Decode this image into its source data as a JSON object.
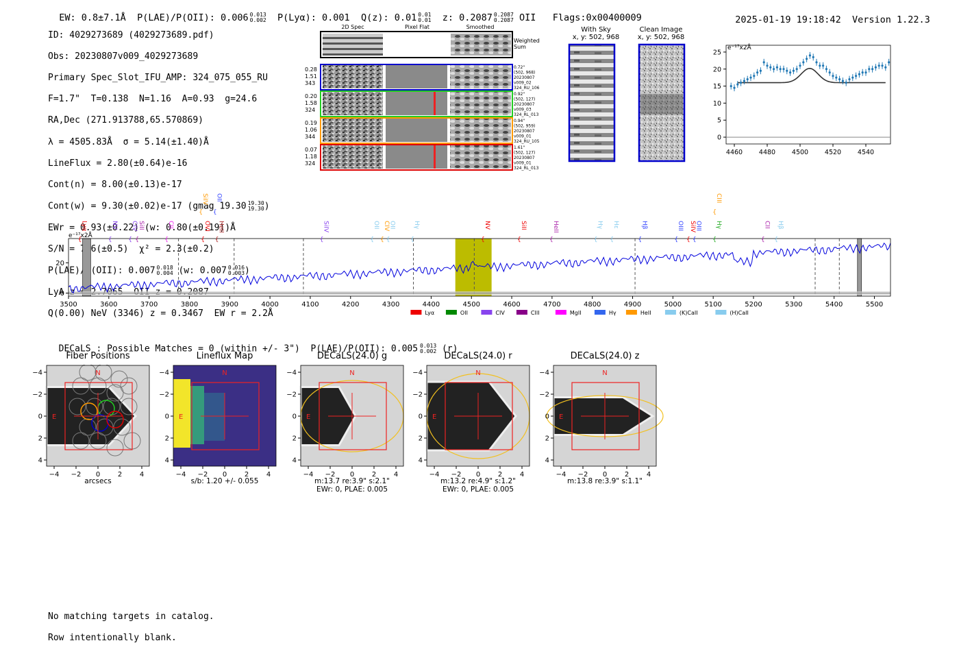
{
  "header": {
    "ew": "EW: 0.8±7.1Å",
    "plae": "P(LAE)/P(OII): 0.006",
    "plae_hi": "0.013",
    "plae_lo": "0.002",
    "plya": "P(Lyα): 0.001",
    "qz": "Q(z): 0.01",
    "qz_hi": "0.01",
    "qz_lo": "0.01",
    "z": "z: 0.2087",
    "z_hi": "0.2087",
    "z_lo": "0.2087",
    "oii": "OII",
    "flags": "Flags:0x00400009",
    "timestamp": "2025-01-19 19:18:42",
    "version": "Version 1.22.3"
  },
  "info": {
    "id": "ID: 4029273689 (4029273689.pdf)",
    "obs": "Obs: 20230807v009_4029273689",
    "primary": "Primary Spec_Slot_IFU_AMP: 324_075_055_RU",
    "f": "F=1.7\"  T=0.138  N=1.16  A=0.93  g=24.6",
    "radec": "RA,Dec (271.913788,65.570869)",
    "lambda": "λ = 4505.83Å  σ = 5.14(±1.40)Å",
    "lineflux": "LineFlux = 2.80(±0.64)e-16",
    "contn": "Cont(n) = 8.00(±0.13)e-17",
    "contw": "Cont(w) = 9.30(±0.02)e-17 (gmag 19.30",
    "contw_hi": "19.30",
    "contw_lo": "19.30",
    "ewr": "EWr = 0.93(±0.22) (w: 0.80(±0.19))Å",
    "sn": "S/N = 7.6(±0.5)  χ² = 2.3(±0.2)",
    "plae2": "P(LAE)/P(OII): 0.007",
    "plae2_hi": "0.018",
    "plae2_lo": "0.004",
    "plae2_w": "(w: 0.007",
    "plae2_w_hi": "0.016",
    "plae2_w_lo": "0.003",
    "lya": "LyA z = 2.7065  OII z = 0.2087",
    "q": "Q(0.00) NeV (3346) z = 0.3467  EW r = 2.2Å"
  },
  "cutouts": {
    "col_2d": "2D Spec",
    "col_flat": "Pixel Flat",
    "col_smooth": "Smoothed",
    "weighted": "Weighted",
    "sum": "Sum",
    "rows": [
      {
        "w1": "0.28",
        "w2": "1.51",
        "w3": "343",
        "color": "#0000cc",
        "l1": "0.72\"",
        "l2": "(502, 968)",
        "l3": "20230807",
        "l4": "v009_02",
        "l5": "324_RU_106"
      },
      {
        "w1": "0.20",
        "w2": "1.58",
        "w3": "324",
        "color": "#22cc22",
        "l1": "0.92\"",
        "l2": "(502, 127)",
        "l3": "20230807",
        "l4": "v009_03",
        "l5": "324_RL_013"
      },
      {
        "w1": "0.19",
        "w2": "1.06",
        "w3": "344",
        "color": "#ff9900",
        "l1": "0.94\"",
        "l2": "(502, 959)",
        "l3": "20230807",
        "l4": "v009_01",
        "l5": "324_RU_105"
      },
      {
        "w1": "0.07",
        "w2": "1.18",
        "w3": "324",
        "color": "#dd0000",
        "l1": "1.61\"",
        "l2": "(502, 127)",
        "l3": "20230807",
        "l4": "v009_01",
        "l5": "324_RL_013"
      }
    ],
    "with_sky": "With Sky",
    "with_sky_xy": "x, y: 502, 968",
    "clean": "Clean Image",
    "clean_xy": "x, y: 502, 968"
  },
  "zoom_chart": {
    "type": "scatter",
    "unit_label": "e⁻¹⁷x2Å",
    "xlim": [
      4455,
      4555
    ],
    "ylim": [
      -2,
      27
    ],
    "xticks": [
      "4460",
      "4480",
      "4500",
      "4520",
      "4540"
    ],
    "yticks": [
      "0",
      "5",
      "10",
      "15",
      "20",
      "25"
    ],
    "x": [
      4458,
      4460,
      4462,
      4464,
      4466,
      4468,
      4470,
      4472,
      4474,
      4476,
      4478,
      4480,
      4482,
      4484,
      4486,
      4488,
      4490,
      4492,
      4494,
      4496,
      4498,
      4500,
      4502,
      4504,
      4506,
      4508,
      4510,
      4512,
      4514,
      4516,
      4518,
      4520,
      4522,
      4524,
      4526,
      4528,
      4530,
      4532,
      4534,
      4536,
      4538,
      4540,
      4542,
      4544,
      4546,
      4548,
      4550,
      4552,
      4554
    ],
    "y": [
      15,
      14.5,
      15.5,
      16,
      16.5,
      17,
      17.5,
      18,
      19,
      19.5,
      22,
      21,
      20.5,
      20,
      20.5,
      20,
      20,
      19.5,
      19,
      19.5,
      20,
      21,
      22,
      23,
      24,
      23.5,
      22,
      21,
      21,
      20,
      19,
      18,
      17.5,
      17,
      16.5,
      16,
      17,
      17.5,
      18,
      18.5,
      19,
      19,
      20,
      20,
      20.5,
      21,
      21,
      20.5,
      22
    ],
    "model_base": 16,
    "model_peak": 4.2,
    "model_center": 4505.8,
    "model_sigma": 5.14
  },
  "spectrum": {
    "type": "line",
    "unit_label": "e⁻¹⁷x2Å",
    "xlim": [
      3500,
      5540
    ],
    "ylim": [
      -2,
      36
    ],
    "xticks": [
      "3500",
      "3600",
      "3700",
      "3800",
      "3900",
      "4000",
      "4100",
      "4200",
      "4300",
      "4400",
      "4500",
      "4600",
      "4700",
      "4800",
      "4900",
      "5000",
      "5100",
      "5200",
      "5300",
      "5400",
      "5500"
    ],
    "yticks": [
      "0",
      "20"
    ],
    "highlight": [
      4460,
      4550
    ],
    "gray_bands": [
      [
        3535,
        3555
      ],
      [
        5458,
        5468
      ]
    ],
    "dashed_lines": [
      3773,
      3911,
      4083,
      4356,
      4507,
      4906,
      5353,
      5413
    ],
    "color_series": "#0000dd",
    "lines": [
      {
        "label": "Lyα",
        "x": 3530,
        "color": "#ee0000",
        "row": "low"
      },
      {
        "label": "NV",
        "x": 3605,
        "color": "#8844ee",
        "row": "low"
      },
      {
        "label": "CIV",
        "x": 3655,
        "color": "#8844ee",
        "row": "low"
      },
      {
        "label": "SiII",
        "x": 3672,
        "color": "#aa22aa",
        "row": "low"
      },
      {
        "label": "CII",
        "x": 3745,
        "color": "#ee22ee",
        "row": "low"
      },
      {
        "label": "OVI",
        "x": 3835,
        "color": "#ee0000",
        "row": "low"
      },
      {
        "label": "HeII",
        "x": 3870,
        "color": "#aa2222",
        "row": "low"
      },
      {
        "label": "SiIV",
        "x": 3830,
        "color": "#ff9900",
        "row": "high"
      },
      {
        "label": "OII",
        "x": 3865,
        "color": "#3344ff",
        "row": "high"
      },
      {
        "label": "SiIV",
        "x": 4130,
        "color": "#8844ee",
        "row": "low"
      },
      {
        "label": "OII",
        "x": 4255,
        "color": "#88ccee",
        "row": "low"
      },
      {
        "label": "CIV",
        "x": 4280,
        "color": "#ff9900",
        "row": "low"
      },
      {
        "label": "OII",
        "x": 4295,
        "color": "#88ccee",
        "row": "low"
      },
      {
        "label": "Hγ",
        "x": 4355,
        "color": "#88ccee",
        "row": "low"
      },
      {
        "label": "NV",
        "x": 4530,
        "color": "#ee0000",
        "row": "low"
      },
      {
        "label": "SiII",
        "x": 4620,
        "color": "#ee0000",
        "row": "low"
      },
      {
        "label": "HeII",
        "x": 4700,
        "color": "#aa22aa",
        "row": "low"
      },
      {
        "label": "Hγ",
        "x": 4810,
        "color": "#88ccee",
        "row": "low"
      },
      {
        "label": "Hε",
        "x": 4850,
        "color": "#88ccee",
        "row": "low"
      },
      {
        "label": "Hβ",
        "x": 4920,
        "color": "#3344ff",
        "row": "low"
      },
      {
        "label": "OIII",
        "x": 5010,
        "color": "#3344ff",
        "row": "low"
      },
      {
        "label": "SiIV",
        "x": 5040,
        "color": "#ee0000",
        "row": "low"
      },
      {
        "label": "OIII",
        "x": 5055,
        "color": "#3344ff",
        "row": "low"
      },
      {
        "label": "Hγ",
        "x": 5105,
        "color": "#22aa22",
        "row": "low"
      },
      {
        "label": "CIII",
        "x": 5105,
        "color": "#ff9900",
        "row": "high"
      },
      {
        "label": "CII",
        "x": 5225,
        "color": "#aa22aa",
        "row": "low"
      },
      {
        "label": "Hβ",
        "x": 5258,
        "color": "#88ccee",
        "row": "low"
      }
    ],
    "legend": [
      {
        "label": "Lyα",
        "color": "#ee0000"
      },
      {
        "label": "OII",
        "color": "#008800"
      },
      {
        "label": "CIV",
        "color": "#8844ee"
      },
      {
        "label": "CIII",
        "color": "#880088"
      },
      {
        "label": "MgII",
        "color": "#ff00ff"
      },
      {
        "label": "Hγ",
        "color": "#3366ee"
      },
      {
        "label": "HeII",
        "color": "#ff9900"
      },
      {
        "label": "(K)CaII",
        "color": "#88ccee"
      },
      {
        "label": "(H)CaII",
        "color": "#88ccee"
      }
    ]
  },
  "decals": {
    "title": "DECaLS : Possible Matches = 0 (within +/- 3\")  P(LAE)/P(OII): 0.005",
    "title_hi": "0.013",
    "title_lo": "0.002",
    "title_band": "(r)",
    "ticks": [
      "−4",
      "−2",
      "0",
      "2",
      "4"
    ],
    "north": "N",
    "east": "E",
    "panels": [
      {
        "title": "Fiber Positions",
        "cap1": "arcsecs",
        "cap2": ""
      },
      {
        "title": "Lineflux Map",
        "cap1": "s/b: 1.20 +/- 0.055",
        "cap2": ""
      },
      {
        "title": "DECaLS(24.0) g",
        "cap1": "m:13.7  re:3.9\"  s:2.1\"",
        "cap2": "EWr: 0, PLAE: 0.005"
      },
      {
        "title": "DECaLS(24.0) r",
        "cap1": "m:13.2  re:4.9\"  s:1.2\"",
        "cap2": "EWr: 0, PLAE: 0.005"
      },
      {
        "title": "DECaLS(24.0) z",
        "cap1": "m:13.8  re:3.9\"  s:1.1\"",
        "cap2": ""
      }
    ]
  },
  "footer": {
    "line1": "No matching targets in catalog.",
    "line2": "Row intentionally blank."
  }
}
